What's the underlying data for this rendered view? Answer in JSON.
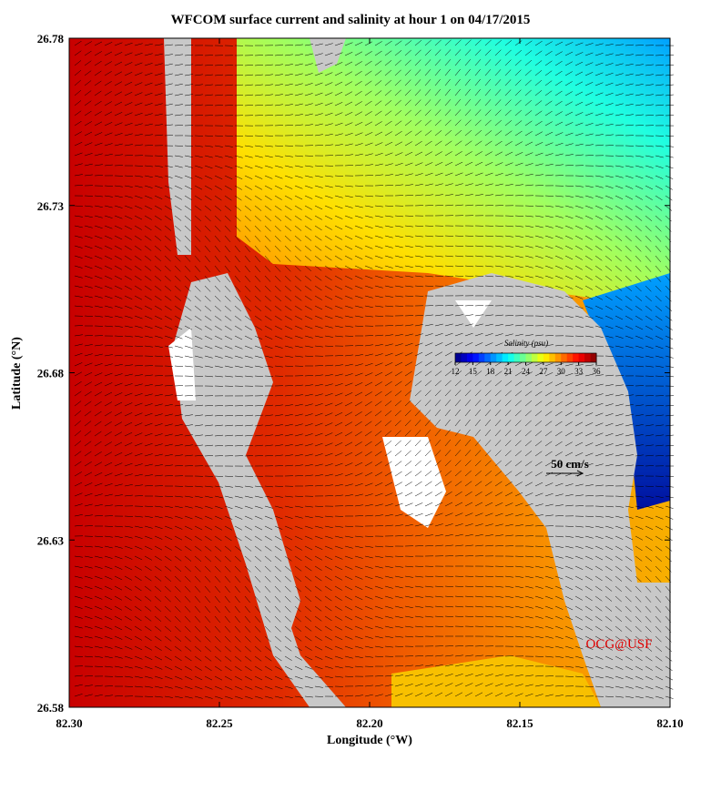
{
  "chart_data": {
    "type": "map",
    "title": "WFCOM surface current and salinity at hour 1 on 04/17/2015",
    "x_label": "Longitude (°W)",
    "y_label": "Latitude (°N)",
    "xlim": [
      82.3,
      82.1
    ],
    "xticks": [
      {
        "value": 82.3,
        "label": "82.30"
      },
      {
        "value": 82.25,
        "label": "82.25"
      },
      {
        "value": 82.2,
        "label": "82.20"
      },
      {
        "value": 82.15,
        "label": "82.15"
      },
      {
        "value": 82.1,
        "label": "82.10"
      }
    ],
    "ylim": [
      26.58,
      26.78
    ],
    "yticks": [
      26.58,
      26.63,
      26.68,
      26.73,
      26.78
    ],
    "colorbar": {
      "label": "Salinity (psu)",
      "lim": [
        12,
        36
      ],
      "ticks": [
        12,
        15,
        18,
        21,
        24,
        27,
        30,
        33,
        36
      ]
    },
    "scale_label": "50 cm/s",
    "credit": "OCG@USF"
  }
}
